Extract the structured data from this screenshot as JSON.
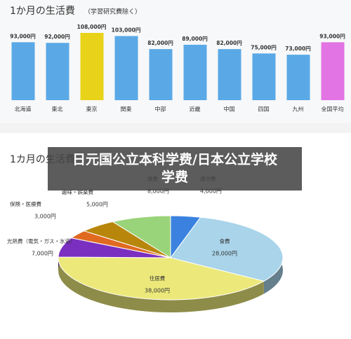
{
  "banner": "日元国公立本科学费/日本公立学校学费",
  "chart_data": [
    {
      "type": "bar",
      "title": "1か月の生活費",
      "subtitle": "（学習研究費除く）",
      "categories": [
        "北海道",
        "東北",
        "東京",
        "関東",
        "中部",
        "近畿",
        "中国",
        "四国",
        "九州",
        "全国平均"
      ],
      "values": [
        93000,
        92000,
        108000,
        103000,
        82000,
        89000,
        82000,
        75000,
        73000,
        93000
      ],
      "value_labels": [
        "93,000円",
        "92,000円",
        "108,000円",
        "103,000円",
        "82,000円",
        "89,000円",
        "82,000円",
        "75,000円",
        "73,000円",
        "93,000円"
      ],
      "colors": [
        "#5aa9e6",
        "#5aa9e6",
        "#e8d31a",
        "#5aa9e6",
        "#5aa9e6",
        "#5aa9e6",
        "#5aa9e6",
        "#5aa9e6",
        "#5aa9e6",
        "#e274e4"
      ]
    },
    {
      "type": "pie",
      "title": "1カ月の生活費",
      "categories": [
        "通学費",
        "食費",
        "住居費",
        "光熱費（電気・ガス・水道）",
        "保険・医療費",
        "趣味・娯楽費",
        "雑費"
      ],
      "values": [
        4000,
        28000,
        38000,
        7000,
        3000,
        5000,
        8000
      ],
      "value_labels": [
        "4,000円",
        "28,000円",
        "38,000円",
        "7,000円",
        "3,000円",
        "5,000円",
        "8,000円"
      ],
      "colors": [
        "#3b82e0",
        "#a9d4ea",
        "#ece97a",
        "#7b2fc0",
        "#e06a20",
        "#b8860b",
        "#9ad47a"
      ]
    }
  ]
}
